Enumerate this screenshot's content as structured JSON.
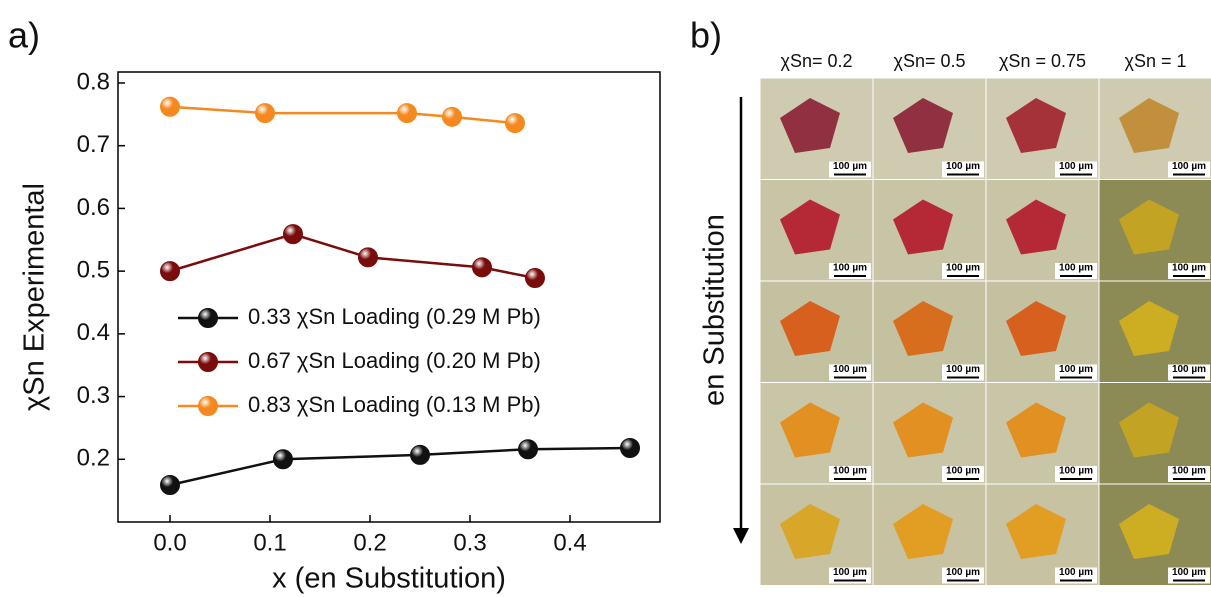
{
  "chart_data": {
    "type": "line",
    "panel_label": "a)",
    "x_label": "x (en Substitution)",
    "y_label": "χSn Experimental",
    "xlim": [
      -0.052,
      0.49
    ],
    "ylim": [
      0.1,
      0.8175
    ],
    "xticks": [
      {
        "value": 0,
        "label": "0.0"
      },
      0.1,
      0.2,
      0.3,
      0.4
    ],
    "yticks": [
      0.2,
      0.3,
      0.4,
      0.5,
      0.6,
      0.7,
      0.8
    ],
    "legend": "center-left",
    "series": [
      {
        "name": "0.33 χSn Loading (0.29 M Pb)",
        "color": "#111111",
        "x": [
          0.0,
          0.113,
          0.25,
          0.358,
          0.46
        ],
        "values": [
          0.159,
          0.2,
          0.207,
          0.216,
          0.218
        ]
      },
      {
        "name": "0.67 χSn Loading (0.20 M Pb)",
        "color": "#7a0c0c",
        "x": [
          0.0,
          0.123,
          0.198,
          0.312,
          0.365
        ],
        "values": [
          0.5,
          0.559,
          0.522,
          0.506,
          0.489
        ]
      },
      {
        "name": "0.83 χSn Loading (0.13 M Pb)",
        "color": "#f5891f",
        "x": [
          0.0,
          0.095,
          0.237,
          0.282,
          0.345
        ],
        "values": [
          0.762,
          0.752,
          0.752,
          0.746,
          0.736
        ]
      }
    ]
  },
  "panel_b": {
    "label": "b)",
    "columns": [
      "χSn= 0.2",
      "χSn= 0.5",
      "χSn = 0.75",
      "χSn = 1"
    ],
    "row_label": "en Substitution",
    "scale_bar": "100 µm"
  }
}
